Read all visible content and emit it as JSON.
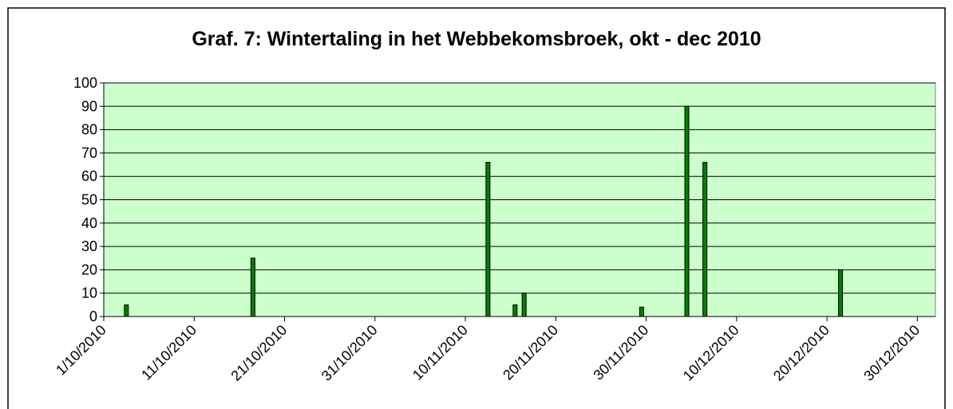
{
  "chart_data": {
    "type": "bar",
    "title": "Graf. 7: Wintertaling in het Webbekomsbroek, okt - dec 2010",
    "x": [
      "3/10/2010",
      "17/10/2010",
      "12/11/2010",
      "15/11/2010",
      "16/11/2010",
      "29/11/2010",
      "4/12/2010",
      "6/12/2010",
      "21/12/2010"
    ],
    "values": [
      5,
      25,
      66,
      5,
      10,
      4,
      90,
      66,
      20
    ],
    "color": "#008000",
    "xlim": [
      "1/10/2010",
      "31/12/2010"
    ],
    "xticks": [
      "1/10/2010",
      "11/10/2010",
      "21/10/2010",
      "31/10/2010",
      "10/11/2010",
      "20/11/2010",
      "30/11/2010",
      "10/12/2010",
      "20/12/2010",
      "30/12/2010"
    ],
    "ylim": [
      0,
      100
    ],
    "yticks": [
      0,
      10,
      20,
      30,
      40,
      50,
      60,
      70,
      80,
      90,
      100
    ],
    "grid": true
  }
}
